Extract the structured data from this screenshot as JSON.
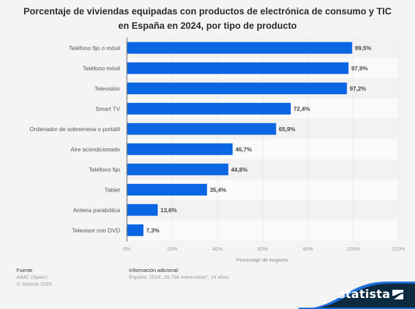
{
  "chart_data": {
    "type": "bar",
    "orientation": "horizontal",
    "title": "Porcentaje de viviendas equipadas con productos de electrónica de consumo y TIC en España en 2024, por tipo de producto",
    "title_lines": [
      "Porcentaje de viviendas equipadas con productos de electrónica de consumo y TIC",
      "en España en 2024, por tipo de producto"
    ],
    "categories": [
      "Teléfono fijo o móvil",
      "Teléfono móvil",
      "Televisión",
      "Smart TV",
      "Ordenador de sobremesa o portátil",
      "Aire acondicionado",
      "Teléfono fijo",
      "Tablet",
      "Antena parabólica",
      "Televisor con DVD"
    ],
    "values": [
      99.5,
      97.9,
      97.2,
      72.4,
      65.9,
      46.7,
      44.8,
      35.4,
      13.6,
      7.3
    ],
    "value_labels": [
      "99,5%",
      "97,9%",
      "97,2%",
      "72,4%",
      "65,9%",
      "46,7%",
      "44,8%",
      "35,4%",
      "13,6%",
      "7,3%"
    ],
    "xlabel": "Porcentaje de hogares",
    "ylabel": "",
    "xlim": [
      0,
      120
    ],
    "xticks": [
      0,
      20,
      40,
      60,
      80,
      100,
      120
    ],
    "xtick_labels": [
      "0%",
      "20%",
      "40%",
      "60%",
      "80%",
      "100%",
      "120%"
    ],
    "grid": true,
    "legend": "none",
    "bar_color": "#0b66e4"
  },
  "footer": {
    "source_heading": "Fuente",
    "source_lines": [
      "AIMC (Spain)",
      "© Statista 2025"
    ],
    "info_heading": "Información adicional:",
    "info_text": "España; 2024; 29.766 entrevistas*; 14 años"
  },
  "brand": {
    "name": "statista",
    "color": "#0c2a40",
    "accent": "#1d6ed9"
  }
}
